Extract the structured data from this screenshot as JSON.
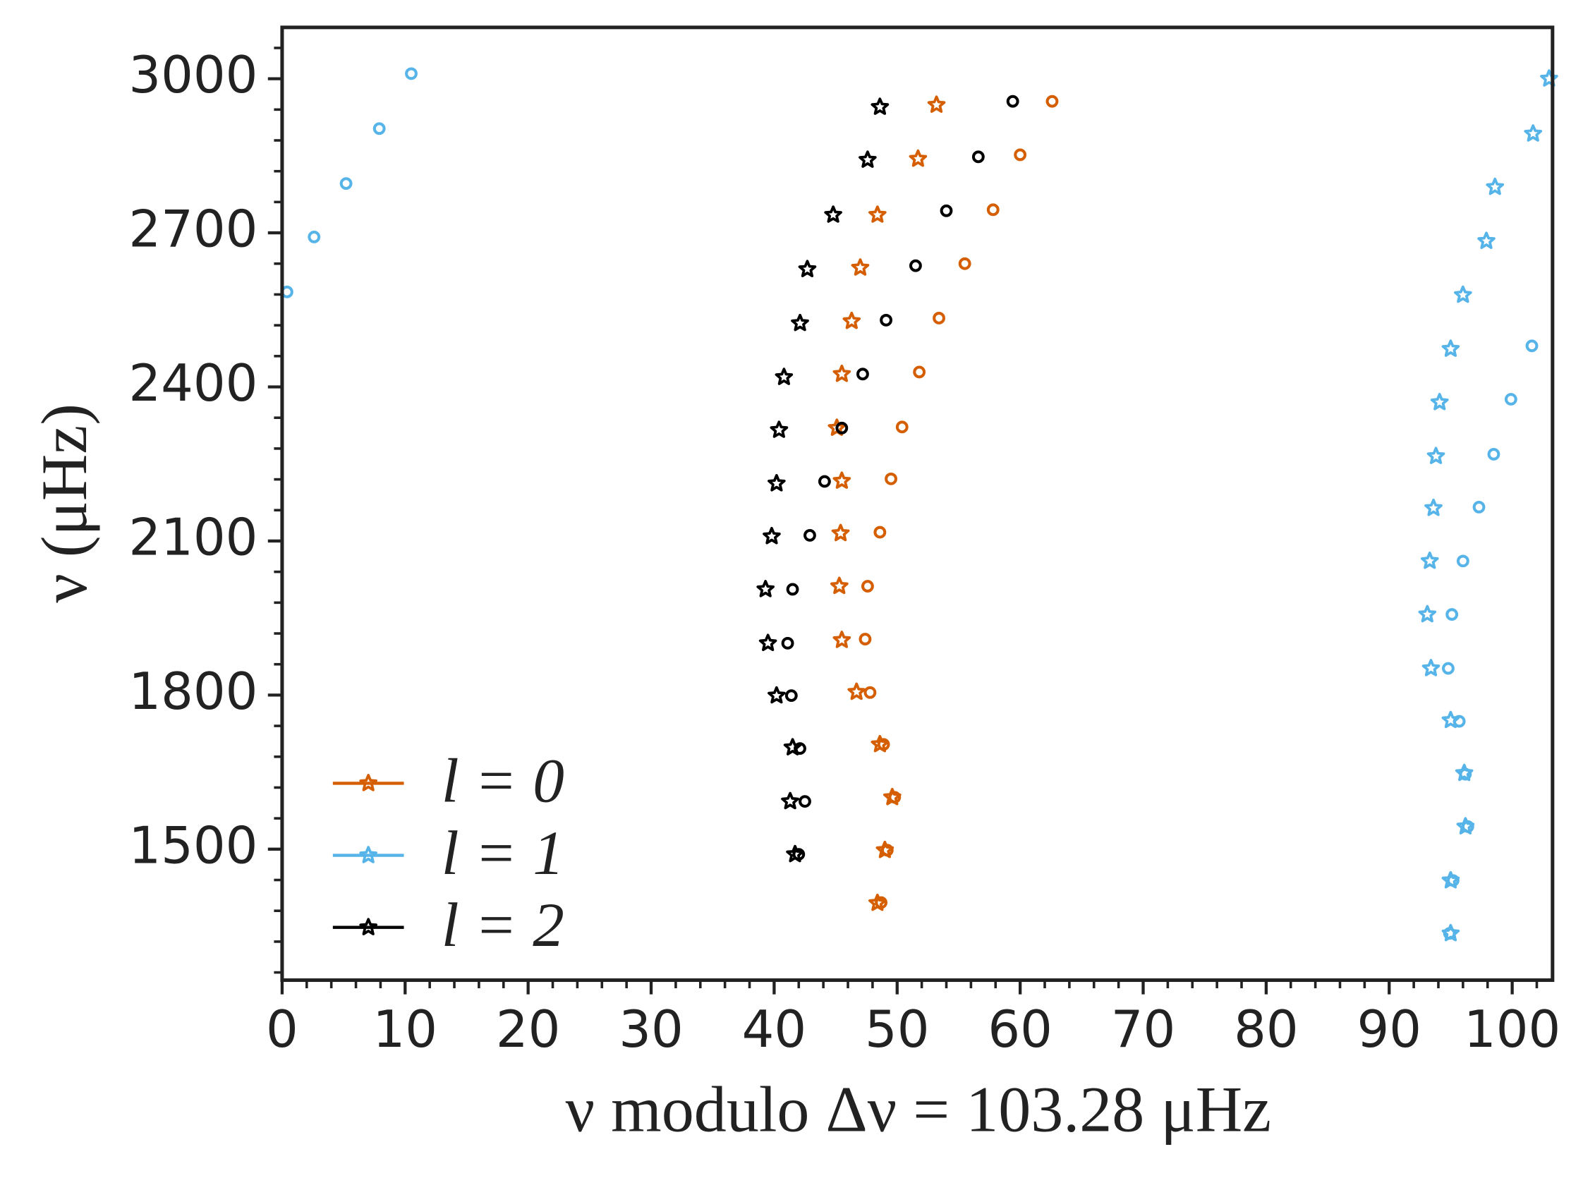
{
  "chart_data": {
    "type": "scatter",
    "xlabel": "ν modulo Δν = 103.28 μHz",
    "ylabel": "ν (μHz)",
    "xlim": [
      0,
      103.28
    ],
    "ylim": [
      1245,
      3100
    ],
    "xticks": [
      0,
      10,
      20,
      30,
      40,
      50,
      60,
      70,
      80,
      90,
      100
    ],
    "yticks": [
      1500,
      1800,
      2100,
      2400,
      2700,
      3000
    ],
    "xminorticks": [
      2,
      4,
      6,
      8,
      12,
      14,
      16,
      18,
      22,
      24,
      26,
      28,
      32,
      34,
      36,
      38,
      42,
      44,
      46,
      48,
      52,
      54,
      56,
      58,
      62,
      64,
      66,
      68,
      72,
      74,
      76,
      78,
      82,
      84,
      86,
      88,
      92,
      94,
      96,
      98,
      102
    ],
    "yminorticks": [
      1260,
      1320,
      1380,
      1440,
      1560,
      1620,
      1680,
      1740,
      1860,
      1920,
      1980,
      2040,
      2160,
      2220,
      2280,
      2340,
      2460,
      2520,
      2580,
      2640,
      2760,
      2820,
      2880,
      2940,
      3060
    ],
    "legend": "lower left",
    "series": [
      {
        "name": "l = 0",
        "color": "#d55e00",
        "marker": "star",
        "x": [
          53.2,
          51.7,
          48.4,
          47.0,
          46.3,
          45.5,
          45.1,
          45.5,
          45.4,
          45.3,
          45.5,
          46.7,
          48.6,
          49.6,
          49.0,
          48.4
        ],
        "y": [
          2949,
          2844,
          2735,
          2632,
          2528,
          2425,
          2320,
          2217,
          2115,
          2012,
          1907,
          1806,
          1704,
          1601,
          1498,
          1395
        ]
      },
      {
        "name": "l = 1",
        "color": "#56b4e9",
        "marker": "star",
        "x": [
          103.0,
          101.7,
          98.6,
          97.9,
          96.0,
          95.0,
          94.1,
          93.8,
          93.6,
          93.3,
          93.1,
          93.4,
          95.0,
          96.1,
          96.2,
          95.0,
          95.0
        ],
        "y": [
          3000,
          2893,
          2789,
          2684,
          2579,
          2474,
          2370,
          2265,
          2164,
          2061,
          1957,
          1852,
          1751,
          1648,
          1544,
          1439,
          1336
        ]
      },
      {
        "name": "l = 2",
        "color": "#000000",
        "marker": "star",
        "x": [
          48.6,
          47.6,
          44.8,
          42.7,
          42.1,
          40.8,
          40.4,
          40.2,
          39.8,
          39.3,
          39.5,
          40.2,
          41.5,
          41.3,
          41.7
        ],
        "y": [
          2945,
          2842,
          2735,
          2629,
          2524,
          2419,
          2316,
          2212,
          2109,
          2006,
          1901,
          1799,
          1698,
          1593,
          1490
        ]
      },
      {
        "color": "#d55e00",
        "marker": "circle",
        "x": [
          62.6,
          60.0,
          57.8,
          55.5,
          53.4,
          51.8,
          50.4,
          49.5,
          48.6,
          47.6,
          47.4,
          47.8,
          48.9,
          49.8,
          49.2,
          48.7
        ],
        "y": [
          2956,
          2852,
          2745,
          2640,
          2534,
          2429,
          2322,
          2221,
          2117,
          2012,
          1909,
          1805,
          1704,
          1601,
          1498,
          1396
        ]
      },
      {
        "color": "#56b4e9",
        "marker": "circle",
        "x": [
          10.5,
          7.9,
          5.2,
          2.6,
          0.4,
          101.6,
          99.9,
          98.5,
          97.3,
          96.0,
          95.1,
          94.8,
          95.7,
          96.2,
          96.4,
          95.2,
          94.9
        ],
        "y": [
          3010,
          2903,
          2796,
          2692,
          2585,
          2480,
          2376,
          2269,
          2166,
          2061,
          1957,
          1852,
          1749,
          1646,
          1544,
          1439,
          1336
        ]
      },
      {
        "color": "#000000",
        "marker": "circle",
        "x": [
          59.4,
          56.6,
          54.0,
          51.5,
          49.1,
          47.2,
          45.5,
          44.1,
          42.9,
          41.5,
          41.1,
          41.4,
          42.1,
          42.5,
          42.0
        ],
        "y": [
          2956,
          2848,
          2743,
          2636,
          2530,
          2425,
          2320,
          2216,
          2111,
          2006,
          1901,
          1799,
          1696,
          1593,
          1490
        ]
      }
    ]
  }
}
